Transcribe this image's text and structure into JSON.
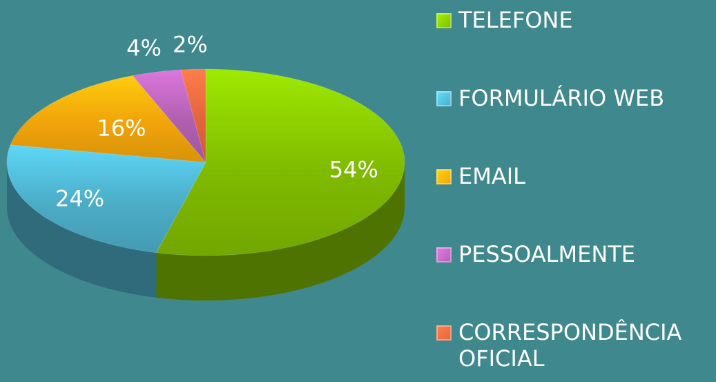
{
  "chart_data": {
    "type": "pie",
    "categories": [
      "TELEFONE",
      "FORMULÁRIO WEB",
      "EMAIL",
      "PESSOALMENTE",
      "CORRESPONDÊNCIA OFICIAL"
    ],
    "values": [
      54,
      24,
      16,
      4,
      2
    ],
    "value_labels": [
      "54%",
      "24%",
      "16%",
      "4%",
      "2%"
    ],
    "colors": [
      "#7fba00",
      "#4bacc6",
      "#f0a30a",
      "#b05fb0",
      "#e3643c"
    ],
    "legend": "right"
  }
}
